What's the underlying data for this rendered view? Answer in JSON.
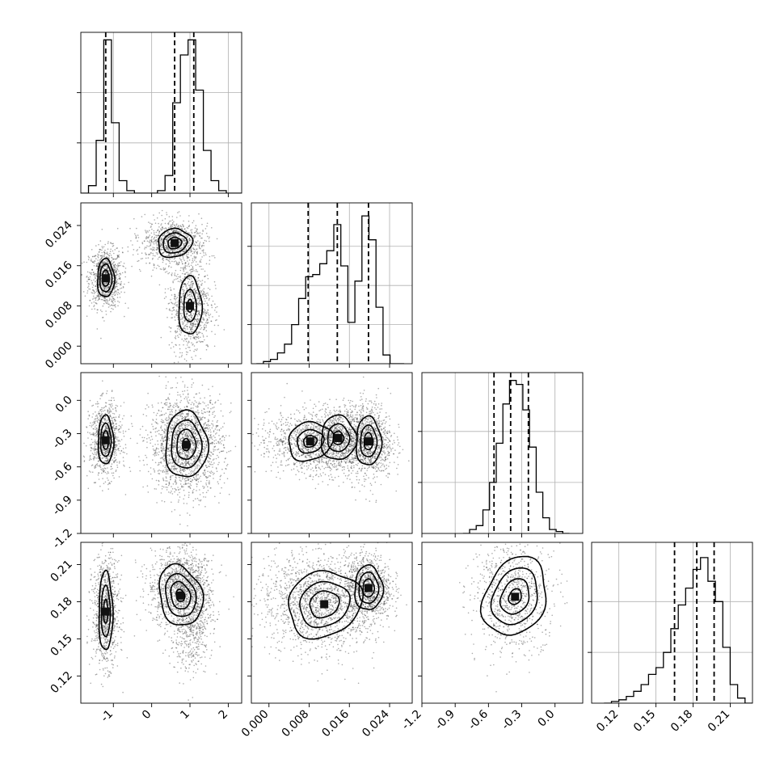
{
  "chart_data": {
    "type": "corner",
    "parameters": [
      {
        "range": [
          -1.85,
          2.35
        ],
        "ticks": [
          "-1",
          "0",
          "1",
          "2"
        ],
        "tick_values": [
          -1,
          0,
          1,
          2
        ],
        "quantiles": [
          -1.2,
          0.6,
          1.1
        ],
        "hist_x": [
          -1.85,
          -1.65,
          -1.45,
          -1.25,
          -1.05,
          -0.85,
          -0.65,
          -0.45,
          -0.25,
          -0.05,
          0.15,
          0.35,
          0.55,
          0.75,
          0.95,
          1.15,
          1.35,
          1.55,
          1.75,
          1.95,
          2.15
        ],
        "hist_counts": [
          0,
          3,
          21,
          61,
          28,
          5,
          1,
          0,
          0,
          0,
          1,
          7,
          36,
          55,
          61,
          41,
          17,
          5,
          1,
          0,
          0
        ],
        "hist_ymax": 64,
        "hist_grid": [
          20,
          40
        ]
      },
      {
        "range": [
          -0.0035,
          0.0285
        ],
        "ticks": [
          "0.000",
          "0.008",
          "0.016",
          "0.024"
        ],
        "tick_values": [
          0,
          0.008,
          0.016,
          0.024
        ],
        "quantiles": [
          0.0078,
          0.0136,
          0.0198
        ],
        "hist_x": [
          -0.0025,
          -0.0011,
          0.0003,
          0.0017,
          0.0031,
          0.0045,
          0.0059,
          0.0073,
          0.0087,
          0.0101,
          0.0115,
          0.0129,
          0.0143,
          0.0157,
          0.0171,
          0.0185,
          0.0199,
          0.0213,
          0.0227,
          0.0241,
          0.0255
        ],
        "hist_counts": [
          0,
          1,
          2,
          5,
          9,
          18,
          30,
          40,
          41,
          46,
          52,
          64,
          45,
          19,
          38,
          68,
          57,
          26,
          4,
          0,
          0
        ],
        "hist_ymax": 74,
        "hist_grid": [
          18,
          36,
          54
        ]
      },
      {
        "range": [
          -1.2,
          0.25
        ],
        "ticks": [
          "-1.2",
          "-0.9",
          "-0.6",
          "-0.3",
          "0.0"
        ],
        "tick_values": [
          -1.2,
          -0.9,
          -0.6,
          -0.3,
          0
        ],
        "quantiles": [
          -0.55,
          -0.4,
          -0.24
        ],
        "hist_x": [
          -0.83,
          -0.77,
          -0.71,
          -0.65,
          -0.59,
          -0.53,
          -0.47,
          -0.41,
          -0.35,
          -0.29,
          -0.23,
          -0.17,
          -0.11,
          -0.05,
          0.01,
          0.07
        ],
        "hist_counts": [
          0,
          2,
          4,
          12,
          26,
          46,
          66,
          78,
          76,
          63,
          44,
          21,
          8,
          2,
          1,
          0
        ],
        "hist_ymax": 82,
        "hist_grid": [
          26,
          52
        ]
      },
      {
        "range": [
          0.098,
          0.228
        ],
        "ticks": [
          "0.12",
          "0.15",
          "0.18",
          "0.21"
        ],
        "tick_values": [
          0.12,
          0.15,
          0.18,
          0.21
        ],
        "quantiles": [
          0.165,
          0.183,
          0.197
        ],
        "hist_x": [
          0.108,
          0.114,
          0.12,
          0.126,
          0.132,
          0.138,
          0.144,
          0.15,
          0.156,
          0.162,
          0.168,
          0.174,
          0.18,
          0.186,
          0.192,
          0.198,
          0.204,
          0.21,
          0.216,
          0.222
        ],
        "hist_counts": [
          0,
          1,
          2,
          4,
          7,
          11,
          17,
          21,
          30,
          44,
          58,
          68,
          79,
          86,
          72,
          60,
          33,
          11,
          3,
          0
        ],
        "hist_ymax": 95,
        "hist_grid": [
          30,
          60
        ]
      }
    ]
  }
}
